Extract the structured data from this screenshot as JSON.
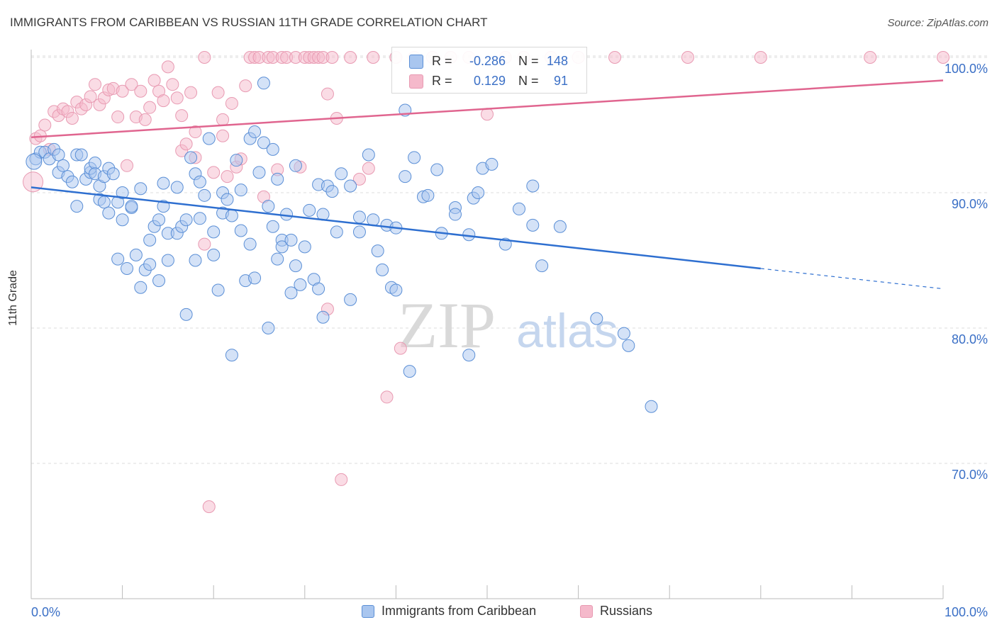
{
  "header": {
    "title": "IMMIGRANTS FROM CARIBBEAN VS RUSSIAN 11TH GRADE CORRELATION CHART",
    "source": "Source: ZipAtlas.com"
  },
  "watermark": {
    "zip": "ZIP",
    "atlas": "atlas"
  },
  "stats": {
    "caribbean": {
      "r_label": "R =",
      "r_value": "-0.286",
      "n_label": "N =",
      "n_value": "148"
    },
    "russians": {
      "r_label": "R =",
      "r_value": "0.129",
      "n_label": "N =",
      "n_value": "91"
    }
  },
  "legend": {
    "caribbean": "Immigrants from Caribbean",
    "russians": "Russians"
  },
  "colors": {
    "caribbean_fill": "#a9c6ef",
    "caribbean_stroke": "#5b8fd6",
    "caribbean_line": "#2e6fd0",
    "russians_fill": "#f5b9cb",
    "russians_stroke": "#e89ab2",
    "russians_line": "#e0658f",
    "tick_text": "#3a6fc6",
    "grid": "#dddddd"
  },
  "chart_data": {
    "type": "scatter",
    "title": "IMMIGRANTS FROM CARIBBEAN VS RUSSIAN 11TH GRADE CORRELATION CHART",
    "xlabel": "",
    "ylabel": "11th Grade",
    "x_tick_labels": [
      "0.0%",
      "100.0%"
    ],
    "y_tick_labels": [
      "70.0%",
      "80.0%",
      "90.0%",
      "100.0%"
    ],
    "y_ticks": [
      70,
      80,
      90,
      100
    ],
    "xlim": [
      0,
      100
    ],
    "ylim": [
      61,
      103
    ],
    "grid": true,
    "legend_position": "bottom-center",
    "series": [
      {
        "name": "Immigrants from Caribbean",
        "r": -0.286,
        "n": 148,
        "trend": {
          "x": [
            0,
            80
          ],
          "y": [
            90.4,
            84.4
          ],
          "dashed_to": [
            100,
            82.9
          ]
        },
        "points": [
          [
            0.5,
            92.5
          ],
          [
            1,
            93
          ],
          [
            1.5,
            93
          ],
          [
            2,
            92.5
          ],
          [
            2.5,
            93.2
          ],
          [
            3,
            92.8
          ],
          [
            3,
            91.5
          ],
          [
            3.5,
            92
          ],
          [
            4,
            91.2
          ],
          [
            4.5,
            90.8
          ],
          [
            5,
            92.8
          ],
          [
            5,
            89
          ],
          [
            5.5,
            92.8
          ],
          [
            6,
            91
          ],
          [
            6.5,
            91.5
          ],
          [
            6.5,
            91.8
          ],
          [
            7,
            92.2
          ],
          [
            7,
            91.4
          ],
          [
            7.5,
            90.5
          ],
          [
            7.5,
            89.5
          ],
          [
            8,
            91.2
          ],
          [
            8,
            89.3
          ],
          [
            8.5,
            91.8
          ],
          [
            8.5,
            88.5
          ],
          [
            9,
            91.4
          ],
          [
            9.5,
            85.1
          ],
          [
            9.5,
            89.3
          ],
          [
            10,
            90
          ],
          [
            10,
            88
          ],
          [
            10.5,
            84.4
          ],
          [
            11,
            88.9
          ],
          [
            11,
            89
          ],
          [
            11.5,
            85.4
          ],
          [
            12,
            90.3
          ],
          [
            12,
            83
          ],
          [
            12.5,
            84.3
          ],
          [
            13,
            86.5
          ],
          [
            13,
            84.7
          ],
          [
            13.5,
            87.5
          ],
          [
            14,
            88
          ],
          [
            14,
            83.5
          ],
          [
            14.5,
            90.7
          ],
          [
            14.5,
            89
          ],
          [
            15,
            87
          ],
          [
            15,
            85
          ],
          [
            16,
            90.4
          ],
          [
            16,
            87
          ],
          [
            16.5,
            87.5
          ],
          [
            17,
            81
          ],
          [
            17,
            88
          ],
          [
            17.5,
            92.6
          ],
          [
            18,
            85
          ],
          [
            18,
            91.4
          ],
          [
            18.5,
            88.1
          ],
          [
            18.5,
            90.8
          ],
          [
            19,
            89.8
          ],
          [
            19.5,
            94
          ],
          [
            20,
            85.4
          ],
          [
            20,
            87.1
          ],
          [
            20.5,
            82.8
          ],
          [
            21,
            88.5
          ],
          [
            21,
            90
          ],
          [
            21.5,
            89.5
          ],
          [
            22,
            88.3
          ],
          [
            22,
            78
          ],
          [
            22.5,
            92.4
          ],
          [
            23,
            87.2
          ],
          [
            23,
            90.2
          ],
          [
            23.5,
            83.5
          ],
          [
            24,
            94
          ],
          [
            24,
            86.2
          ],
          [
            24.5,
            94.5
          ],
          [
            24.5,
            83.7
          ],
          [
            25,
            91.5
          ],
          [
            25.5,
            98.1
          ],
          [
            25.5,
            93.7
          ],
          [
            26,
            89
          ],
          [
            26,
            80
          ],
          [
            26.5,
            93.2
          ],
          [
            26.5,
            87.5
          ],
          [
            27,
            85.1
          ],
          [
            27,
            91
          ],
          [
            27.5,
            86.5
          ],
          [
            27.5,
            86
          ],
          [
            28,
            88.4
          ],
          [
            28.5,
            82.6
          ],
          [
            28.5,
            86.5
          ],
          [
            29,
            92
          ],
          [
            29,
            84.6
          ],
          [
            29.5,
            83.2
          ],
          [
            30,
            86
          ],
          [
            30.5,
            88.7
          ],
          [
            31,
            83.6
          ],
          [
            31.5,
            90.6
          ],
          [
            31.5,
            82.9
          ],
          [
            32,
            88.4
          ],
          [
            32,
            80.8
          ],
          [
            32.5,
            90.5
          ],
          [
            33,
            90.1
          ],
          [
            33.5,
            87.1
          ],
          [
            34,
            91.4
          ],
          [
            35,
            82.1
          ],
          [
            35,
            90.5
          ],
          [
            36,
            88.2
          ],
          [
            36,
            87.1
          ],
          [
            37,
            92.8
          ],
          [
            37.5,
            88
          ],
          [
            38,
            85.7
          ],
          [
            38.5,
            84.3
          ],
          [
            39,
            87.6
          ],
          [
            39.5,
            83
          ],
          [
            40,
            87.4
          ],
          [
            40,
            82.8
          ],
          [
            41,
            91.2
          ],
          [
            41,
            96.1
          ],
          [
            41.5,
            76.8
          ],
          [
            42,
            92.6
          ],
          [
            43,
            89.7
          ],
          [
            43.5,
            89.8
          ],
          [
            44.5,
            91.7
          ],
          [
            45,
            87
          ],
          [
            46.5,
            88.9
          ],
          [
            46.5,
            88.4
          ],
          [
            48,
            78
          ],
          [
            48,
            86.9
          ],
          [
            48.5,
            89.6
          ],
          [
            49,
            90
          ],
          [
            49.5,
            91.8
          ],
          [
            50.5,
            92.1
          ],
          [
            52,
            86.2
          ],
          [
            53.5,
            88.8
          ],
          [
            55,
            90.5
          ],
          [
            55,
            87.6
          ],
          [
            56,
            84.6
          ],
          [
            58,
            87.5
          ],
          [
            62,
            80.7
          ],
          [
            65,
            79.6
          ],
          [
            65.5,
            78.7
          ],
          [
            68,
            74.2
          ]
        ]
      },
      {
        "name": "Russians",
        "r": 0.129,
        "n": 91,
        "trend": {
          "x": [
            0,
            100
          ],
          "y": [
            94.1,
            98.3
          ]
        },
        "points": [
          [
            0.5,
            94
          ],
          [
            1,
            94.2
          ],
          [
            1.5,
            95
          ],
          [
            2,
            93.2
          ],
          [
            2.5,
            96
          ],
          [
            3,
            95.7
          ],
          [
            3.5,
            96.2
          ],
          [
            4,
            96
          ],
          [
            4.5,
            95.5
          ],
          [
            5,
            96.7
          ],
          [
            5.5,
            96.2
          ],
          [
            6,
            96.5
          ],
          [
            6.5,
            97.1
          ],
          [
            7,
            98
          ],
          [
            7.5,
            96.5
          ],
          [
            8,
            97
          ],
          [
            8.5,
            97.6
          ],
          [
            9,
            97.7
          ],
          [
            9.5,
            95.6
          ],
          [
            10,
            97.5
          ],
          [
            10.5,
            92
          ],
          [
            11,
            98
          ],
          [
            11.5,
            95.6
          ],
          [
            12,
            97.5
          ],
          [
            12.5,
            95.4
          ],
          [
            13,
            96.3
          ],
          [
            13.5,
            98.3
          ],
          [
            14,
            97.5
          ],
          [
            14.5,
            96.8
          ],
          [
            15,
            99.3
          ],
          [
            15.5,
            98
          ],
          [
            16,
            97
          ],
          [
            16.5,
            95.7
          ],
          [
            16.5,
            93.1
          ],
          [
            17,
            93.6
          ],
          [
            17.5,
            97.4
          ],
          [
            18,
            94.5
          ],
          [
            18,
            92.6
          ],
          [
            19,
            100
          ],
          [
            19,
            86.2
          ],
          [
            19.5,
            66.8
          ],
          [
            20,
            91.5
          ],
          [
            20.5,
            97.4
          ],
          [
            21,
            94.2
          ],
          [
            21,
            95.4
          ],
          [
            21.5,
            91.2
          ],
          [
            22,
            96.6
          ],
          [
            22.5,
            91.9
          ],
          [
            23,
            92.5
          ],
          [
            23.5,
            97.9
          ],
          [
            24,
            100
          ],
          [
            24.5,
            100
          ],
          [
            25,
            100
          ],
          [
            25.5,
            89.7
          ],
          [
            26,
            100
          ],
          [
            26.5,
            100
          ],
          [
            27,
            91.7
          ],
          [
            27.5,
            100
          ],
          [
            28,
            100
          ],
          [
            29,
            100
          ],
          [
            29.5,
            91.9
          ],
          [
            30,
            100
          ],
          [
            30.5,
            100
          ],
          [
            31,
            100
          ],
          [
            31.5,
            100
          ],
          [
            32,
            100
          ],
          [
            32.5,
            97.3
          ],
          [
            32.5,
            81.4
          ],
          [
            33,
            100
          ],
          [
            33.5,
            95.5
          ],
          [
            34,
            68.8
          ],
          [
            35,
            100
          ],
          [
            36,
            91
          ],
          [
            37,
            91.8
          ],
          [
            37.5,
            100
          ],
          [
            39,
            74.9
          ],
          [
            40,
            100
          ],
          [
            40.5,
            78.5
          ],
          [
            42,
            100
          ],
          [
            44,
            100
          ],
          [
            46,
            100
          ],
          [
            48,
            100
          ],
          [
            50,
            95.8
          ],
          [
            52,
            100
          ],
          [
            54,
            100
          ],
          [
            57,
            100
          ],
          [
            60,
            100
          ],
          [
            64,
            100
          ],
          [
            72,
            100
          ],
          [
            80,
            100
          ],
          [
            92,
            100
          ],
          [
            100,
            100
          ]
        ]
      }
    ]
  }
}
